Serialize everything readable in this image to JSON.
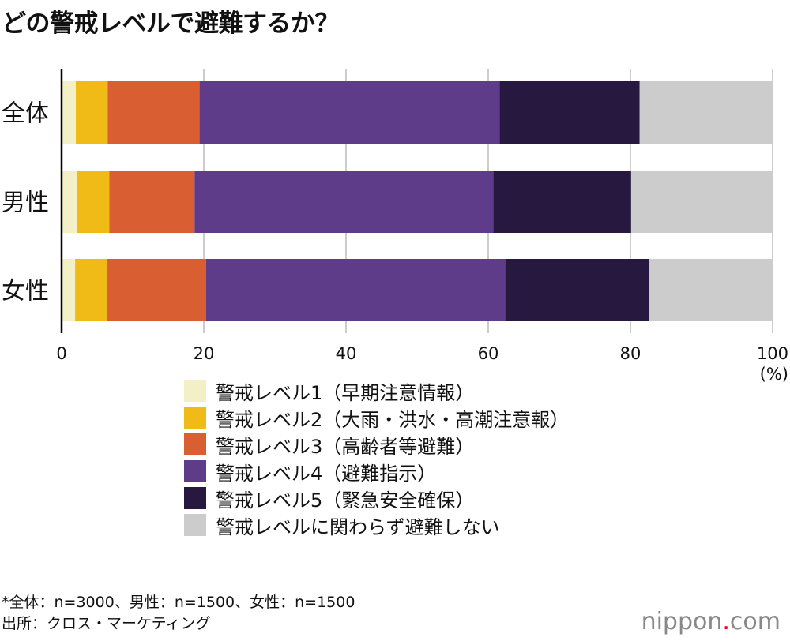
{
  "chart_data": {
    "type": "bar",
    "orientation": "horizontal",
    "stacked": true,
    "title": "どの警戒レベルで避難するか？",
    "categories": [
      "全体",
      "男性",
      "女性"
    ],
    "xlim": [
      0,
      100
    ],
    "xticks": [
      0,
      20,
      40,
      60,
      80,
      100
    ],
    "xunit": "(%)",
    "grid": true,
    "legend_placement": "bottom",
    "series": [
      {
        "name": "警戒レベル1（早期注意情報）",
        "color": "#f3efc7",
        "values": [
          2.0,
          2.2,
          1.9
        ]
      },
      {
        "name": "警戒レベル2（大雨・洪水・高潮注意報）",
        "color": "#f0bb17",
        "values": [
          4.5,
          4.5,
          4.5
        ]
      },
      {
        "name": "警戒レベル3（高齢者等避難）",
        "color": "#d95f33",
        "values": [
          12.9,
          12.0,
          13.9
        ]
      },
      {
        "name": "警戒レベル4（避難指示）",
        "color": "#5e3c8a",
        "values": [
          42.2,
          42.0,
          42.1
        ]
      },
      {
        "name": "警戒レベル5（緊急安全確保）",
        "color": "#27183f",
        "values": [
          19.7,
          19.4,
          20.2
        ]
      },
      {
        "name": "警戒レベルに関わらず避難しない",
        "color": "#cccccc",
        "values": [
          18.7,
          19.9,
          17.4
        ]
      }
    ]
  },
  "notes": [
    "*全体：n=3000、男性：n=1500、女性：n=1500",
    "出所：クロス・マーケティング"
  ],
  "logo": {
    "name": "nippon",
    "dot": ".",
    "tld": "com"
  }
}
